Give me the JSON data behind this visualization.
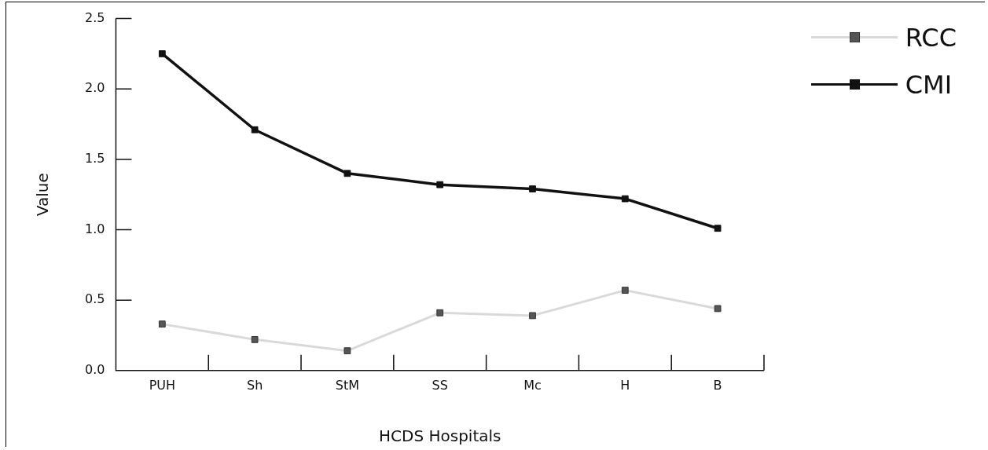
{
  "chart_data": {
    "type": "line",
    "xlabel": "HCDS Hospitals",
    "ylabel": "Value",
    "categories": [
      "PUH",
      "Sh",
      "StM",
      "SS",
      "Mc",
      "H",
      "B"
    ],
    "series": [
      {
        "name": "RCC",
        "color": "#d9d9d9",
        "values": [
          0.33,
          0.22,
          0.14,
          0.41,
          0.39,
          0.57,
          0.44
        ]
      },
      {
        "name": "CMI",
        "color": "#111111",
        "values": [
          2.25,
          1.71,
          1.4,
          1.32,
          1.29,
          1.22,
          1.01
        ]
      }
    ],
    "ylim": [
      0,
      2.5
    ],
    "yticks": [
      {
        "value": 0,
        "label": "0.0"
      },
      {
        "value": 0.5,
        "label": "0.5"
      },
      {
        "value": 1,
        "label": "1.0"
      },
      {
        "value": 1.5,
        "label": "1.5"
      },
      {
        "value": 2,
        "label": "2.0"
      },
      {
        "value": 2.5,
        "label": "2.5"
      }
    ],
    "grid": false,
    "legend": "top right",
    "marker": "square",
    "line_style": "solid"
  }
}
